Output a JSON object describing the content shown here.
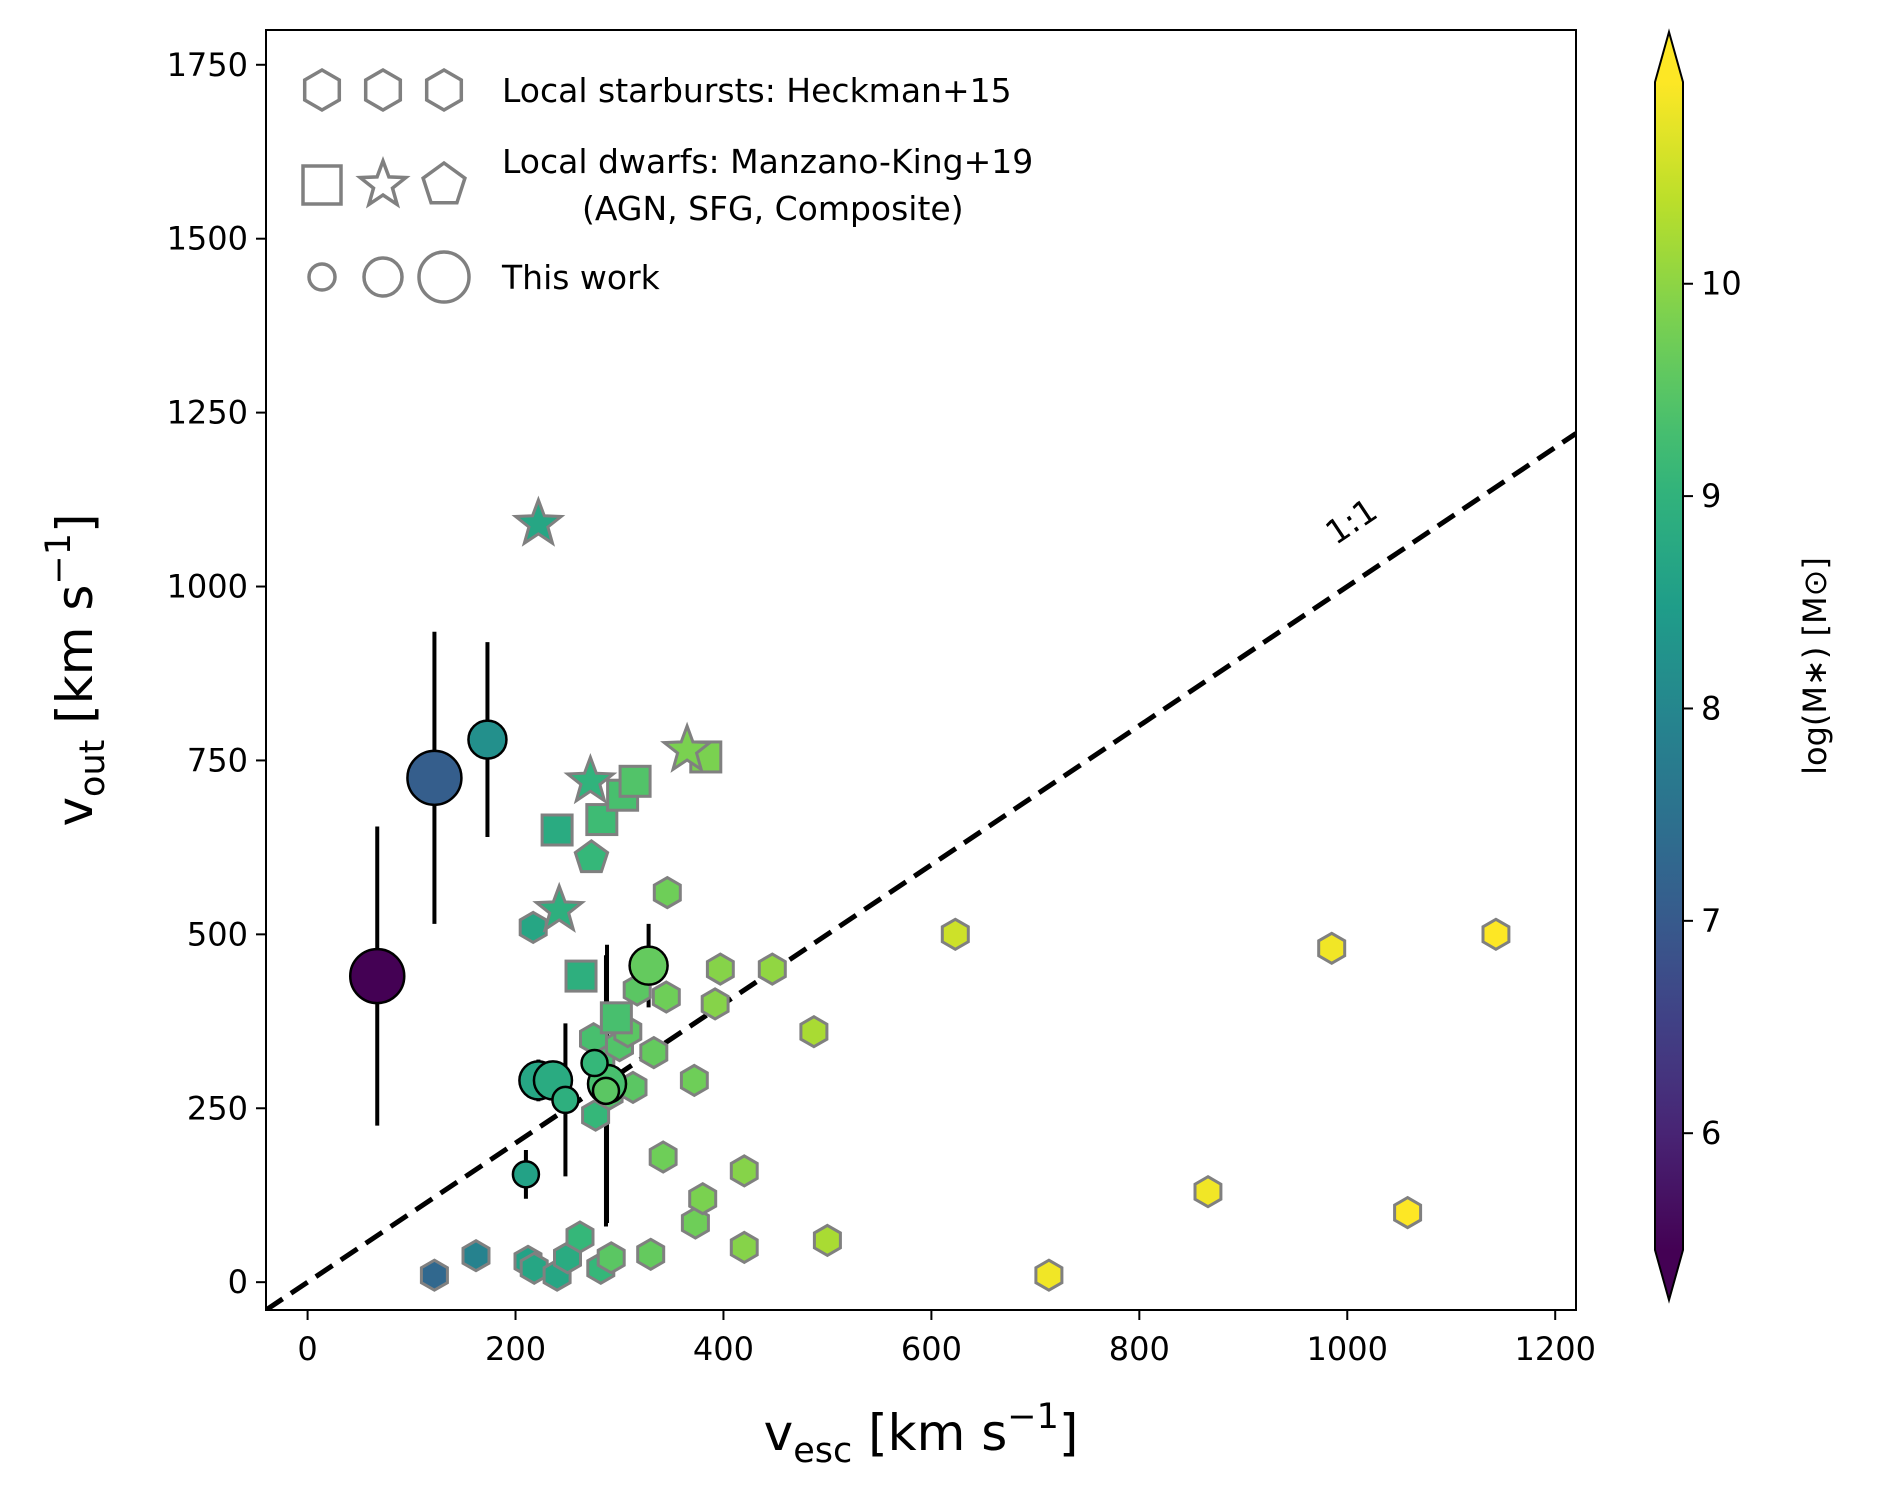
{
  "chart_data": {
    "type": "scatter",
    "xlabel": {
      "base": "v",
      "sub": "esc",
      "units": " [km s",
      "sup": "−1",
      "close": "]"
    },
    "ylabel": {
      "base": "v",
      "sub": "out",
      "units": " [km s",
      "sup": "−1",
      "close": "]"
    },
    "xlim": [
      -40,
      1220
    ],
    "ylim": [
      -40,
      1800
    ],
    "xticks": [
      0,
      200,
      400,
      600,
      800,
      1000,
      1200
    ],
    "yticks": [
      0,
      250,
      500,
      750,
      1000,
      1250,
      1500,
      1750
    ],
    "one_to_one": {
      "label": "1:1",
      "label_x": 1010,
      "label_y": 1080,
      "x": [
        -40,
        1220
      ],
      "y": [
        -40,
        1220
      ]
    },
    "colorbar": {
      "label": "log(M∗) [M⊙]",
      "range": [
        5.45,
        10.95
      ],
      "ticks": [
        6,
        7,
        8,
        9,
        10
      ],
      "colormap": "viridis",
      "extend": "both"
    },
    "legend": [
      {
        "markers": [
          "hexagon",
          "hexagon",
          "hexagon"
        ],
        "text": "Local starbursts: Heckman+15"
      },
      {
        "markers": [
          "square",
          "star",
          "pentagon"
        ],
        "text": "Local dwarfs: Manzano-King+19",
        "text2": "(AGN, SFG, Composite)"
      },
      {
        "markers": [
          "circle-small",
          "circle-medium",
          "circle-large"
        ],
        "text": "This work"
      }
    ],
    "series": [
      {
        "name": "Local starbursts: Heckman+15",
        "marker": "hexagon",
        "points": [
          {
            "x": 122,
            "y": 10,
            "c": 7.3
          },
          {
            "x": 162,
            "y": 38,
            "c": 7.9
          },
          {
            "x": 212,
            "y": 30,
            "c": 8.6
          },
          {
            "x": 218,
            "y": 20,
            "c": 8.7
          },
          {
            "x": 240,
            "y": 10,
            "c": 8.7
          },
          {
            "x": 250,
            "y": 35,
            "c": 8.8
          },
          {
            "x": 262,
            "y": 65,
            "c": 9.1
          },
          {
            "x": 282,
            "y": 20,
            "c": 9.1
          },
          {
            "x": 292,
            "y": 35,
            "c": 9.5
          },
          {
            "x": 330,
            "y": 40,
            "c": 9.6
          },
          {
            "x": 373,
            "y": 85,
            "c": 9.7
          },
          {
            "x": 380,
            "y": 120,
            "c": 9.8
          },
          {
            "x": 420,
            "y": 50,
            "c": 9.9
          },
          {
            "x": 500,
            "y": 60,
            "c": 10.2
          },
          {
            "x": 420,
            "y": 160,
            "c": 9.9
          },
          {
            "x": 342,
            "y": 180,
            "c": 9.7
          },
          {
            "x": 372,
            "y": 290,
            "c": 9.7
          },
          {
            "x": 277,
            "y": 240,
            "c": 9.1
          },
          {
            "x": 290,
            "y": 270,
            "c": 9.4
          },
          {
            "x": 282,
            "y": 320,
            "c": 9.3
          },
          {
            "x": 313,
            "y": 280,
            "c": 9.5
          },
          {
            "x": 275,
            "y": 350,
            "c": 9.3
          },
          {
            "x": 300,
            "y": 340,
            "c": 9.4
          },
          {
            "x": 308,
            "y": 360,
            "c": 9.5
          },
          {
            "x": 333,
            "y": 330,
            "c": 9.6
          },
          {
            "x": 317,
            "y": 420,
            "c": 9.5
          },
          {
            "x": 345,
            "y": 410,
            "c": 9.7
          },
          {
            "x": 392,
            "y": 400,
            "c": 9.9
          },
          {
            "x": 397,
            "y": 450,
            "c": 9.9
          },
          {
            "x": 447,
            "y": 450,
            "c": 10.0
          },
          {
            "x": 487,
            "y": 360,
            "c": 10.2
          },
          {
            "x": 217,
            "y": 510,
            "c": 8.7
          },
          {
            "x": 346,
            "y": 560,
            "c": 9.7
          },
          {
            "x": 623,
            "y": 500,
            "c": 10.5
          },
          {
            "x": 985,
            "y": 480,
            "c": 10.8
          },
          {
            "x": 1143,
            "y": 500,
            "c": 10.9
          },
          {
            "x": 713,
            "y": 10,
            "c": 10.8
          },
          {
            "x": 866,
            "y": 130,
            "c": 10.8
          },
          {
            "x": 1058,
            "y": 100,
            "c": 10.9
          }
        ]
      },
      {
        "name": "Local dwarfs: Manzano-King+19 (AGN)",
        "marker": "square",
        "points": [
          {
            "x": 240,
            "y": 650,
            "c": 8.8
          },
          {
            "x": 283,
            "y": 665,
            "c": 9.2
          },
          {
            "x": 303,
            "y": 700,
            "c": 9.3
          },
          {
            "x": 315,
            "y": 720,
            "c": 9.4
          },
          {
            "x": 383,
            "y": 755,
            "c": 9.8
          },
          {
            "x": 263,
            "y": 440,
            "c": 8.9
          },
          {
            "x": 297,
            "y": 380,
            "c": 9.3
          }
        ]
      },
      {
        "name": "Local dwarfs: Manzano-King+19 (SFG)",
        "marker": "star",
        "points": [
          {
            "x": 222,
            "y": 1090,
            "c": 8.7
          },
          {
            "x": 272,
            "y": 720,
            "c": 9.0
          },
          {
            "x": 242,
            "y": 535,
            "c": 8.9
          },
          {
            "x": 365,
            "y": 765,
            "c": 9.8
          }
        ]
      },
      {
        "name": "Local dwarfs: Manzano-King+19 (Composite)",
        "marker": "pentagon",
        "points": [
          {
            "x": 273,
            "y": 610,
            "c": 9.1
          }
        ]
      },
      {
        "name": "This work",
        "marker": "circle",
        "points": [
          {
            "x": 67,
            "y": 440,
            "c": 5.5,
            "yerr": 215,
            "size": 3
          },
          {
            "x": 122,
            "y": 725,
            "c": 7.1,
            "yerr": 210,
            "size": 3
          },
          {
            "x": 173,
            "y": 780,
            "c": 8.2,
            "yerr": 140,
            "size": 2
          },
          {
            "x": 328,
            "y": 455,
            "c": 9.6,
            "yerr": 60,
            "size": 2
          },
          {
            "x": 210,
            "y": 155,
            "c": 8.6,
            "yerr": 35,
            "size": 1
          },
          {
            "x": 222,
            "y": 290,
            "c": 8.7,
            "yerr": 30,
            "size": 2
          },
          {
            "x": 236,
            "y": 290,
            "c": 8.8,
            "yerr": 25,
            "size": 2
          },
          {
            "x": 248,
            "y": 262,
            "c": 8.9,
            "yerr": 110,
            "size": 1
          },
          {
            "x": 276,
            "y": 315,
            "c": 9.1,
            "yerr": 30,
            "size": 1
          },
          {
            "x": 288,
            "y": 285,
            "c": 9.3,
            "yerr": 200,
            "size": 2
          },
          {
            "x": 287,
            "y": 275,
            "c": 9.5,
            "yerr": 195,
            "size": 1
          }
        ]
      }
    ]
  }
}
